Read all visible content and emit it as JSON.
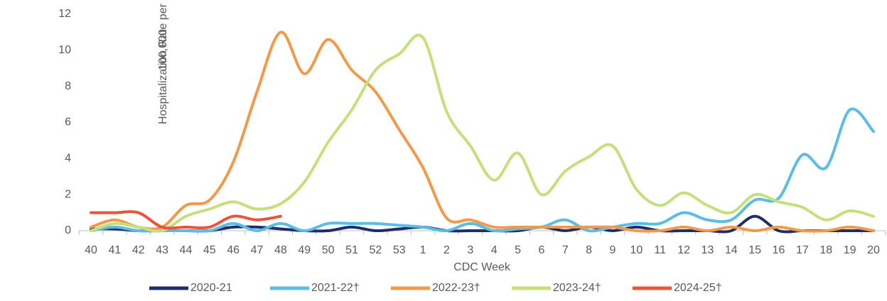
{
  "chart_data": {
    "type": "line",
    "y_label": [
      "Hospitalization Rate per",
      "100,000"
    ],
    "x_label": "CDC Week",
    "categories": [
      "40",
      "41",
      "42",
      "43",
      "44",
      "45",
      "46",
      "47",
      "48",
      "49",
      "50",
      "51",
      "52",
      "53",
      "1",
      "2",
      "3",
      "4",
      "5",
      "6",
      "7",
      "8",
      "9",
      "10",
      "11",
      "12",
      "13",
      "14",
      "15",
      "16",
      "17",
      "18",
      "19",
      "20"
    ],
    "series": [
      {
        "name": "2020-21",
        "color": "#1f2d6b",
        "values": [
          0.1,
          0.1,
          0,
          0,
          0,
          0,
          0.2,
          0.2,
          0.1,
          0,
          0,
          0.2,
          0,
          0.1,
          0.2,
          0,
          0,
          0,
          0,
          0.2,
          0,
          0.2,
          0,
          0.2,
          0,
          0,
          0,
          0,
          0.8,
          0,
          0,
          0,
          0,
          0
        ]
      },
      {
        "name": "2021-22†",
        "color": "#5bbce6",
        "values": [
          0,
          0.2,
          0,
          0,
          0,
          0,
          0.4,
          0,
          0.4,
          0,
          0.4,
          0.4,
          0.4,
          0.3,
          0.2,
          0,
          0.4,
          0,
          0.1,
          0.2,
          0.6,
          0,
          0.2,
          0.4,
          0.4,
          1.0,
          0.6,
          0.6,
          1.7,
          1.8,
          4.2,
          3.5,
          6.7,
          5.5
        ]
      },
      {
        "name": "2022-23†",
        "color": "#f2994a",
        "values": [
          0.2,
          0.6,
          0.2,
          0.2,
          1.4,
          1.7,
          3.8,
          7.7,
          11.0,
          8.7,
          10.6,
          8.9,
          7.7,
          5.6,
          3.5,
          0.7,
          0.6,
          0.2,
          0.2,
          0.2,
          0.2,
          0.2,
          0.2,
          0,
          0,
          0.2,
          0,
          0.2,
          0,
          0.2,
          0,
          0,
          0.2,
          0
        ]
      },
      {
        "name": "2023-24†",
        "color": "#c5df7a",
        "values": [
          0,
          0.4,
          0.2,
          0,
          0.8,
          1.2,
          1.6,
          1.2,
          1.5,
          2.7,
          4.9,
          6.7,
          8.9,
          9.8,
          10.7,
          6.6,
          4.7,
          2.8,
          4.3,
          2.0,
          3.3,
          4.1,
          4.7,
          2.3,
          1.4,
          2.1,
          1.4,
          1.0,
          2.0,
          1.6,
          1.3,
          0.6,
          1.1,
          0.8
        ]
      },
      {
        "name": "2024-25†",
        "color": "#e8553a",
        "values": [
          1.0,
          1.0,
          1.0,
          0.2,
          0.2,
          0.2,
          0.8,
          0.6,
          0.8,
          null,
          null,
          null,
          null,
          null,
          null,
          null,
          null,
          null,
          null,
          null,
          null,
          null,
          null,
          null,
          null,
          null,
          null,
          null,
          null,
          null,
          null,
          null,
          null,
          null
        ]
      }
    ],
    "ylim": [
      0,
      12
    ],
    "yticks": [
      0,
      2,
      4,
      6,
      8,
      10,
      12
    ],
    "grid": false
  }
}
